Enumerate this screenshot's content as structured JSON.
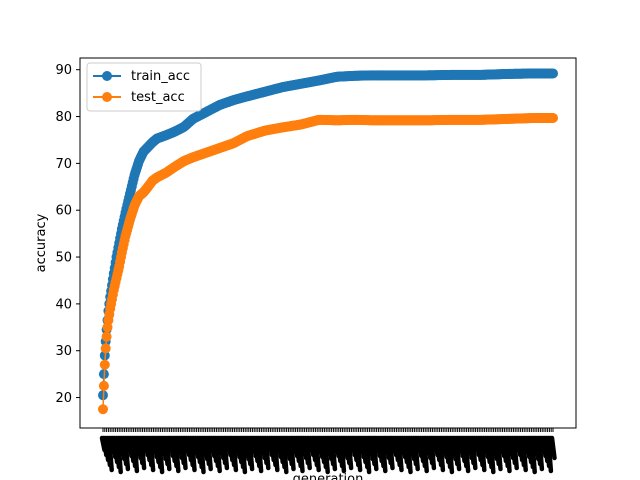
{
  "chart_data": {
    "type": "line",
    "title": "",
    "xlabel": "generation",
    "ylabel": "accuracy",
    "ylim": [
      13.5,
      92.5
    ],
    "yticks": [
      20,
      30,
      40,
      50,
      60,
      70,
      80,
      90
    ],
    "x_range": [
      0,
      500
    ],
    "x_tick_labels_note": "overlapping unreadable rotated labels",
    "grid": false,
    "legend_position": "upper-left",
    "series": [
      {
        "name": "train_acc",
        "color": "#1f77b4",
        "x": [
          0,
          1,
          2,
          3,
          4,
          5,
          6,
          8,
          10,
          12,
          15,
          18,
          21,
          25,
          30,
          35,
          40,
          45,
          50,
          55,
          60,
          70,
          80,
          90,
          100,
          115,
          130,
          145,
          160,
          180,
          200,
          220,
          240,
          260,
          280,
          300,
          330,
          360,
          390,
          420,
          450,
          480,
          500
        ],
        "y": [
          20.5,
          25,
          29,
          32,
          34.5,
          36.5,
          38.5,
          41.5,
          44,
          46.5,
          50,
          53,
          56,
          59.5,
          63.5,
          67.5,
          70.5,
          72.5,
          73.5,
          74.5,
          75.3,
          76,
          76.8,
          77.8,
          79.5,
          81,
          82.5,
          83.5,
          84.3,
          85.3,
          86.3,
          87,
          87.7,
          88.5,
          88.7,
          88.8,
          88.8,
          88.8,
          88.9,
          88.9,
          89.1,
          89.2,
          89.2
        ]
      },
      {
        "name": "test_acc",
        "color": "#ff7f0e",
        "x": [
          0,
          1,
          2,
          3,
          4,
          5,
          6,
          8,
          10,
          12,
          15,
          18,
          21,
          25,
          30,
          35,
          40,
          45,
          50,
          55,
          60,
          70,
          80,
          90,
          100,
          115,
          130,
          145,
          160,
          180,
          200,
          220,
          240,
          260,
          280,
          300,
          330,
          360,
          390,
          420,
          450,
          480,
          500
        ],
        "y": [
          17.5,
          22.5,
          27,
          30.5,
          33,
          35,
          36.5,
          39,
          41,
          43,
          45.5,
          48,
          51,
          54.5,
          58,
          61,
          63,
          63.8,
          65,
          66.3,
          67,
          68,
          69.3,
          70.5,
          71.3,
          72.3,
          73.3,
          74.3,
          75.8,
          77,
          77.7,
          78.3,
          79.3,
          79.2,
          79.3,
          79.2,
          79.2,
          79.2,
          79.3,
          79.3,
          79.5,
          79.7,
          79.7
        ]
      }
    ]
  }
}
